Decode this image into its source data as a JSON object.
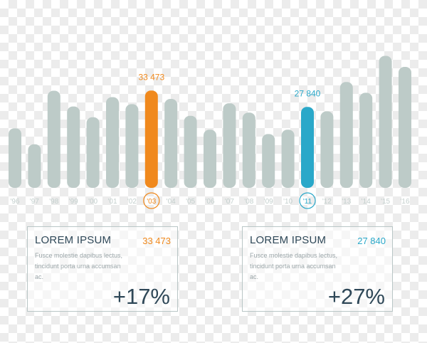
{
  "chart_data": {
    "type": "bar",
    "categories": [
      "'96",
      "'97",
      "'98",
      "'99",
      "'00",
      "'01",
      "'02",
      "'03",
      "'04",
      "'05",
      "'06",
      "'07",
      "'08",
      "'09",
      "'10",
      "'11",
      "'12",
      "'13",
      "'14",
      "'15",
      "'16"
    ],
    "values": [
      20500,
      15000,
      33400,
      28000,
      24300,
      31200,
      28800,
      33473,
      30600,
      24800,
      20000,
      29100,
      25900,
      18500,
      20000,
      27840,
      26300,
      36400,
      32700,
      45400,
      41600
    ],
    "ylim": [
      0,
      47000
    ],
    "grid": false,
    "highlights": [
      {
        "index": 7,
        "label": "33 473",
        "color": "#f0891d"
      },
      {
        "index": 15,
        "label": "27 840",
        "color": "#2aa8c9"
      }
    ],
    "colors": {
      "bar": "#bdcbc8",
      "tick": "#c3cfcd"
    }
  },
  "panels": [
    {
      "title": "LOREM IPSUM",
      "value": "33 473",
      "value_color": "#f0891d",
      "text": "Fusce molestie dapibus lectus, tincidunt porta urna accumsan ac.",
      "percent": "+17%"
    },
    {
      "title": "LOREM IPSUM",
      "value": "27 840",
      "value_color": "#2aa8c9",
      "text": "Fusce molestie dapibus lectus, tincidunt porta urna accumsan ac.",
      "percent": "+27%"
    }
  ]
}
